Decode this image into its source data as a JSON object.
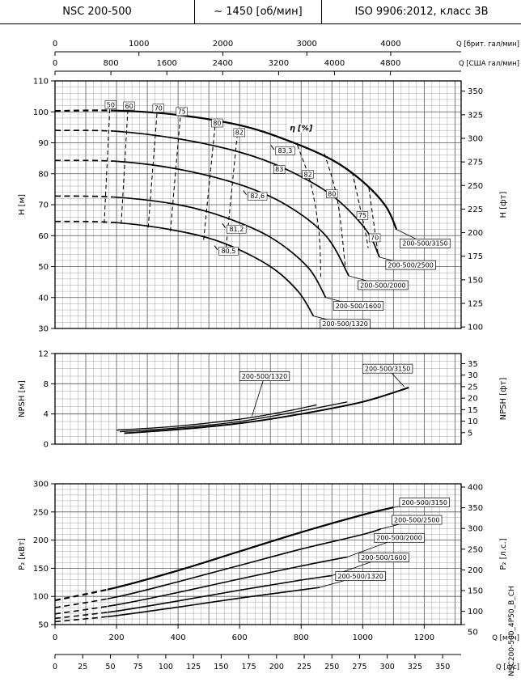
{
  "header": {
    "model": "NSC 200-500",
    "speed": "~ 1450 [об/мин]",
    "standard": "ISO 9906:2012, класс 3В"
  },
  "side_code": "NSC200-500_4P50_B_CH",
  "chart_data": {
    "type": "line",
    "x_axes": {
      "max_m3h": 1320,
      "minor_step": 25,
      "major_step": 100,
      "top1": {
        "label": "Q [брит. гал/мин]",
        "ticks": [
          0,
          1000,
          2000,
          3000,
          4000
        ],
        "to_m3h": 0.27276
      },
      "top2": {
        "label": "Q [США гал/мин]",
        "ticks": [
          0,
          800,
          1600,
          2400,
          3200,
          4000,
          4800
        ],
        "to_m3h": 0.22712
      },
      "bottom1": {
        "label": "Q [м³/ч]",
        "ticks": [
          0,
          200,
          400,
          600,
          800,
          1000,
          1200
        ],
        "to_m3h": 1
      },
      "bottom2": {
        "label": "Q [л/с]",
        "ticks": [
          0,
          25,
          50,
          75,
          100,
          125,
          150,
          175,
          200,
          225,
          250,
          275,
          300,
          325,
          350
        ],
        "to_m3h": 3.6
      }
    },
    "charts": [
      {
        "id": "head",
        "y_label": "H [м]",
        "y2_label": "H [фт]",
        "y_min": 30,
        "y_max": 110,
        "y_minor": 2,
        "y_major": 10,
        "y_ticks": [
          30,
          40,
          50,
          60,
          70,
          80,
          90,
          100,
          110
        ],
        "y2_ticks": [
          100,
          125,
          150,
          175,
          200,
          225,
          250,
          275,
          300,
          325,
          350
        ],
        "y2_to_y": 0.3048,
        "dash_until": 190,
        "series": [
          {
            "name": "200-500/3150",
            "w": 2.2,
            "pts": [
              [
                0,
                100.3
              ],
              [
                200,
                100.4
              ],
              [
                400,
                99
              ],
              [
                600,
                95.7
              ],
              [
                750,
                91
              ],
              [
                900,
                84.5
              ],
              [
                1000,
                77.5
              ],
              [
                1075,
                69.5
              ],
              [
                1110,
                62
              ]
            ]
          },
          {
            "name": "200-500/2500",
            "w": 1.7,
            "pts": [
              [
                0,
                94
              ],
              [
                200,
                93.7
              ],
              [
                400,
                91.3
              ],
              [
                600,
                87
              ],
              [
                750,
                81.5
              ],
              [
                900,
                73
              ],
              [
                1010,
                62
              ],
              [
                1055,
                53
              ]
            ]
          },
          {
            "name": "200-500/2000",
            "w": 1.7,
            "pts": [
              [
                0,
                84.3
              ],
              [
                200,
                84
              ],
              [
                400,
                81.5
              ],
              [
                600,
                76.5
              ],
              [
                750,
                70
              ],
              [
                880,
                60
              ],
              [
                955,
                47
              ]
            ]
          },
          {
            "name": "200-500/1600",
            "w": 1.7,
            "pts": [
              [
                0,
                72.8
              ],
              [
                200,
                72.4
              ],
              [
                400,
                70
              ],
              [
                550,
                66
              ],
              [
                700,
                59.5
              ],
              [
                820,
                50
              ],
              [
                880,
                40
              ]
            ]
          },
          {
            "name": "200-500/1320",
            "w": 1.7,
            "pts": [
              [
                0,
                64.6
              ],
              [
                200,
                64.2
              ],
              [
                400,
                61.5
              ],
              [
                550,
                57.5
              ],
              [
                700,
                50
              ],
              [
                790,
                42
              ],
              [
                840,
                34
              ]
            ]
          }
        ],
        "eff_lines": [
          [
            [
              160,
              64
            ],
            [
              178,
              100.8
            ]
          ],
          [
            [
              215,
              63.8
            ],
            [
              237,
              100.9
            ]
          ],
          [
            [
              303,
              62.6
            ],
            [
              332,
              100.4
            ]
          ],
          [
            [
              375,
              61.4
            ],
            [
              408,
              99.1
            ]
          ],
          [
            [
              483,
              58.6
            ],
            [
              520,
              95.4
            ]
          ],
          [
            [
              556,
              56.2
            ],
            [
              592,
              92.2
            ]
          ],
          [
            [
              788,
              89.2
            ],
            [
              832,
              76.5
            ],
            [
              858,
              61
            ],
            [
              864,
              46
            ]
          ],
          [
            [
              876,
              86.5
            ],
            [
              918,
              71.5
            ],
            [
              944,
              49.5
            ]
          ],
          [
            [
              966,
              80.5
            ],
            [
              1006,
              62.5
            ],
            [
              1018,
              56
            ]
          ],
          [
            [
              1020,
              75.5
            ],
            [
              1050,
              54
            ]
          ]
        ],
        "eff_ticks": [
          [
            [
              702,
              89.2
            ],
            [
              712,
              87.8
            ]
          ],
          [
            [
              612,
              74.6
            ],
            [
              622,
              73.2
            ]
          ],
          [
            [
              544,
              63.9
            ],
            [
              554,
              62.5
            ]
          ],
          [
            [
              518,
              56.8
            ],
            [
              528,
              55.4
            ]
          ]
        ],
        "eff_labels": [
          {
            "t": "50",
            "q": 181,
            "y": 102.3
          },
          {
            "t": "60",
            "q": 241,
            "y": 101.9
          },
          {
            "t": "70",
            "q": 336,
            "y": 101.2
          },
          {
            "t": "75",
            "q": 412,
            "y": 100.1
          },
          {
            "t": "80",
            "q": 527,
            "y": 96.4
          },
          {
            "t": "82",
            "q": 599,
            "y": 93.3
          },
          {
            "t": "η [%]",
            "q": 800,
            "y": 94.8,
            "bold": true
          },
          {
            "t": "83,3",
            "q": 748,
            "y": 87.4
          },
          {
            "t": "83",
            "q": 729,
            "y": 81.4
          },
          {
            "t": "82",
            "q": 822,
            "y": 79.8
          },
          {
            "t": "82,6",
            "q": 658,
            "y": 72.8
          },
          {
            "t": "80",
            "q": 900,
            "y": 73.5
          },
          {
            "t": "75",
            "q": 999,
            "y": 66.5
          },
          {
            "t": "81,2",
            "q": 590,
            "y": 62.1
          },
          {
            "t": "70",
            "q": 1039,
            "y": 59.3
          },
          {
            "t": "80,5",
            "q": 564,
            "y": 55
          }
        ],
        "name_labels": [
          {
            "t": "200-500/3150",
            "q": 1122,
            "y": 57.5,
            "from": [
              1110,
              62
            ]
          },
          {
            "t": "200-500/2500",
            "q": 1075,
            "y": 50.5,
            "from": [
              1055,
              53
            ]
          },
          {
            "t": "200-500/2000",
            "q": 985,
            "y": 44,
            "from": [
              955,
              47
            ]
          },
          {
            "t": "200-500/1600",
            "q": 905,
            "y": 37.3,
            "from": [
              880,
              40
            ]
          },
          {
            "t": "200-500/1320",
            "q": 862,
            "y": 31.5,
            "from": [
              840,
              34
            ]
          }
        ]
      },
      {
        "id": "npsh",
        "y_label": "NPSH [м]",
        "y2_label": "NPSH [фт]",
        "y_min": 0,
        "y_max": 12,
        "y_minor": 1,
        "y_major": 4,
        "y_ticks": [
          0,
          4,
          8,
          12
        ],
        "y2_ticks": [
          5,
          10,
          15,
          20,
          25,
          30,
          35
        ],
        "y2_to_y": 0.3048,
        "series": [
          {
            "name": "200-500/3150",
            "w": 2,
            "pts": [
              [
                225,
                1.45
              ],
              [
                400,
                1.95
              ],
              [
                600,
                2.75
              ],
              [
                800,
                4
              ],
              [
                1000,
                5.6
              ],
              [
                1150,
                7.5
              ]
            ]
          },
          {
            "name": "200-500/2000",
            "w": 1.3,
            "pts": [
              [
                210,
                1.65
              ],
              [
                400,
                2.15
              ],
              [
                600,
                3
              ],
              [
                800,
                4.4
              ],
              [
                950,
                5.6
              ]
            ]
          },
          {
            "name": "200-500/1320",
            "w": 1.3,
            "pts": [
              [
                200,
                1.85
              ],
              [
                400,
                2.4
              ],
              [
                600,
                3.3
              ],
              [
                750,
                4.35
              ],
              [
                850,
                5.2
              ]
            ]
          }
        ],
        "name_labels": [
          {
            "t": "200-500/1320",
            "q": 600,
            "y": 9,
            "from": [
              640,
              3.7
            ]
          },
          {
            "t": "200-500/3150",
            "q": 1000,
            "y": 10,
            "from": [
              1135,
              7.6
            ]
          }
        ]
      },
      {
        "id": "power",
        "y_label": "P₂ [кВт]",
        "y2_label": "P₂ [л.с.]",
        "y_min": 50,
        "y_max": 300,
        "y_minor": 10,
        "y_major": 50,
        "y_ticks": [
          50,
          100,
          150,
          200,
          250,
          300
        ],
        "y2_ticks": [
          50,
          100,
          150,
          200,
          250,
          300,
          350,
          400
        ],
        "y2_to_y": 0.7355,
        "dash_until": 170,
        "series": [
          {
            "name": "200-500/3150",
            "w": 2.2,
            "pts": [
              [
                0,
                93
              ],
              [
                200,
                116
              ],
              [
                400,
                146
              ],
              [
                600,
                180
              ],
              [
                800,
                214
              ],
              [
                1000,
                245
              ],
              [
                1100,
                258
              ]
            ]
          },
          {
            "name": "200-500/2500",
            "w": 1.6,
            "pts": [
              [
                0,
                80
              ],
              [
                200,
                99
              ],
              [
                400,
                126
              ],
              [
                600,
                155
              ],
              [
                800,
                184
              ],
              [
                1000,
                210
              ],
              [
                1060,
                220
              ]
            ]
          },
          {
            "name": "200-500/2000",
            "w": 1.6,
            "pts": [
              [
                0,
                69
              ],
              [
                200,
                85
              ],
              [
                400,
                107
              ],
              [
                600,
                131
              ],
              [
                800,
                154
              ],
              [
                950,
                170
              ]
            ]
          },
          {
            "name": "200-500/1600",
            "w": 1.6,
            "pts": [
              [
                0,
                61
              ],
              [
                200,
                74
              ],
              [
                400,
                92
              ],
              [
                600,
                111
              ],
              [
                800,
                129
              ],
              [
                900,
                137
              ]
            ]
          },
          {
            "name": "200-500/1320",
            "w": 1.6,
            "pts": [
              [
                0,
                55
              ],
              [
                200,
                66
              ],
              [
                400,
                81
              ],
              [
                600,
                97
              ],
              [
                780,
                110
              ],
              [
                860,
                116
              ]
            ]
          }
        ],
        "name_labels": [
          {
            "t": "200-500/3150",
            "q": 1120,
            "y": 267,
            "from": [
              1100,
              258
            ]
          },
          {
            "t": "200-500/2500",
            "q": 1095,
            "y": 236,
            "from": [
              1060,
              220
            ]
          },
          {
            "t": "200-500/2000",
            "q": 1038,
            "y": 204,
            "from": [
              950,
              170
            ]
          },
          {
            "t": "200-500/1600",
            "q": 988,
            "y": 169,
            "from": [
              900,
              137
            ]
          },
          {
            "t": "200-500/1320",
            "q": 912,
            "y": 136,
            "from": [
              860,
              116
            ]
          }
        ]
      }
    ]
  }
}
